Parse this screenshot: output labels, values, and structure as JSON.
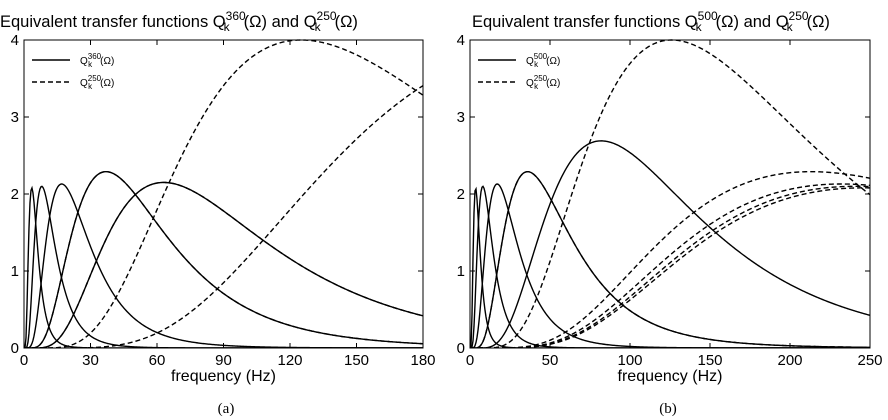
{
  "chart_data": [
    {
      "id": "a",
      "type": "line",
      "title": {
        "prefix": "Equivalent transfer functions ",
        "q1_sub": "k",
        "q1_sup": "360",
        "middle": " and ",
        "q2_sub": "k",
        "q2_sup": "250",
        "omega": "(Ω)"
      },
      "xlabel": "frequency (Hz)",
      "ylabel": "",
      "xlim": [
        0,
        180
      ],
      "ylim": [
        0,
        4
      ],
      "xticks": [
        0,
        30,
        60,
        90,
        120,
        150,
        180
      ],
      "yticks": [
        0,
        1,
        2,
        3,
        4
      ],
      "grid": false,
      "legend_position": "top-left",
      "legend": [
        {
          "sup": "360",
          "sub": "k",
          "style": "solid"
        },
        {
          "sup": "250",
          "sub": "k",
          "style": "dashed"
        }
      ],
      "caption": "(a)",
      "series": [
        {
          "style": "solid",
          "peak_x": 3.5,
          "peak_y": 2.08
        },
        {
          "style": "solid",
          "peak_x": 8,
          "peak_y": 2.1
        },
        {
          "style": "solid",
          "peak_x": 17,
          "peak_y": 2.13
        },
        {
          "style": "solid",
          "peak_x": 37,
          "peak_y": 2.29
        },
        {
          "style": "solid",
          "peak_x": 63,
          "peak_y": 2.15
        },
        {
          "style": "dashed",
          "peak_x": 37,
          "peak_y": 2.29
        },
        {
          "style": "dashed",
          "peak_x": 63,
          "peak_y": 2.15
        },
        {
          "style": "dashed",
          "peak_x": 125,
          "peak_y": 4.0
        },
        {
          "style": "dashed",
          "peak_x": 250,
          "peak_y": 4.0
        }
      ]
    },
    {
      "id": "b",
      "type": "line",
      "title": {
        "prefix": "Equivalent transfer functions ",
        "q1_sub": "k",
        "q1_sup": "500",
        "middle": " and ",
        "q2_sub": "k",
        "q2_sup": "250",
        "omega": "(Ω)"
      },
      "xlabel": "frequency (Hz)",
      "ylabel": "",
      "xlim": [
        0,
        250
      ],
      "ylim": [
        0,
        4
      ],
      "xticks": [
        0,
        50,
        100,
        150,
        200,
        250
      ],
      "yticks": [
        0,
        1,
        2,
        3,
        4
      ],
      "grid": false,
      "legend_position": "top-left",
      "legend": [
        {
          "sup": "500",
          "sub": "k",
          "style": "solid"
        },
        {
          "sup": "250",
          "sub": "k",
          "style": "dashed"
        }
      ],
      "caption": "(b)",
      "series": [
        {
          "style": "solid",
          "peak_x": 3.5,
          "peak_y": 2.08
        },
        {
          "style": "solid",
          "peak_x": 8,
          "peak_y": 2.1
        },
        {
          "style": "solid",
          "peak_x": 17,
          "peak_y": 2.13
        },
        {
          "style": "solid",
          "peak_x": 36,
          "peak_y": 2.29
        },
        {
          "style": "solid",
          "peak_x": 82,
          "peak_y": 2.69
        },
        {
          "style": "dashed",
          "peak_x": 36,
          "peak_y": 2.29
        },
        {
          "style": "dashed",
          "peak_x": 126,
          "peak_y": 4.0
        },
        {
          "style": "dashed",
          "peak_x": 213,
          "peak_y": 2.29
        },
        {
          "style": "dashed",
          "peak_x": 232,
          "peak_y": 2.13
        },
        {
          "style": "dashed",
          "peak_x": 241,
          "peak_y": 2.1
        },
        {
          "style": "dashed",
          "peak_x": 246,
          "peak_y": 2.08
        }
      ]
    }
  ]
}
